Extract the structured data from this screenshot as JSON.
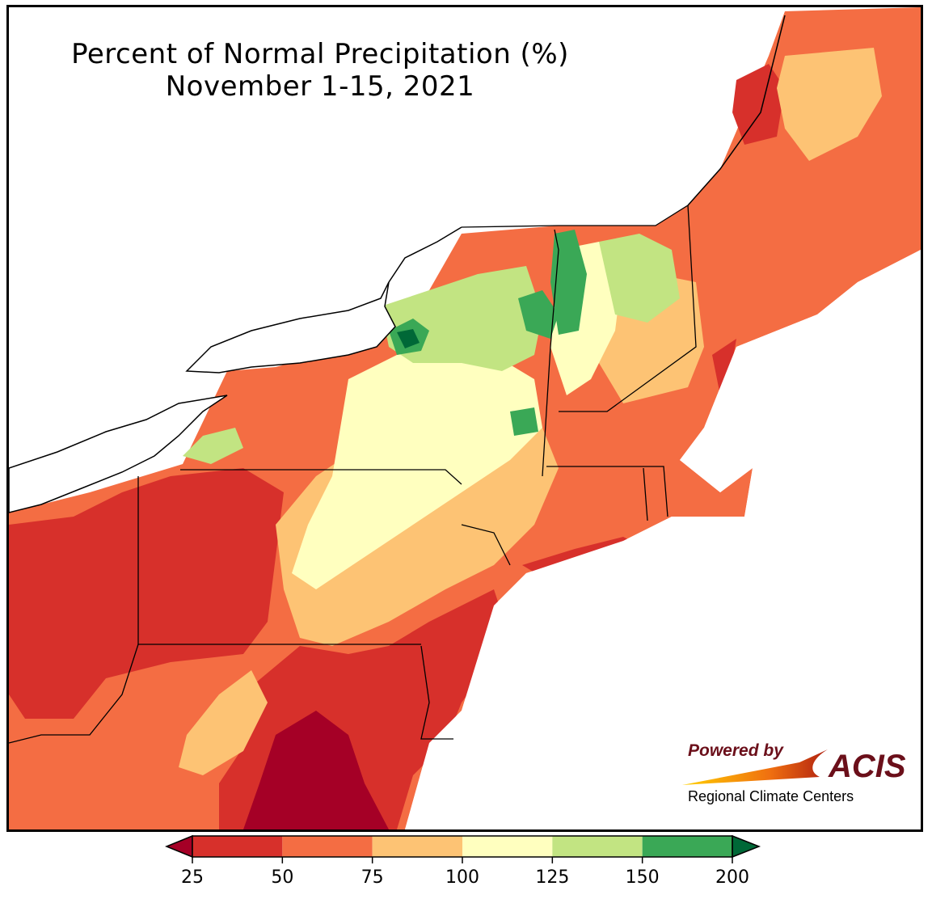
{
  "title": {
    "line1": "Percent of Normal Precipitation (%)",
    "line2": "November 1-15, 2021"
  },
  "legend": {
    "ticks": [
      "25",
      "50",
      "75",
      "100",
      "125",
      "150",
      "200"
    ],
    "colors": [
      "#a50026",
      "#d7302b",
      "#f46d43",
      "#fdc374",
      "#ffffbf",
      "#c2e482",
      "#3aa856",
      "#006837"
    ],
    "extend_low_color": "#a50026",
    "extend_high_color": "#006837"
  },
  "logo": {
    "powered_by": "Powered by",
    "brand": "ACIS",
    "subtitle": "Regional Climate Centers"
  }
}
